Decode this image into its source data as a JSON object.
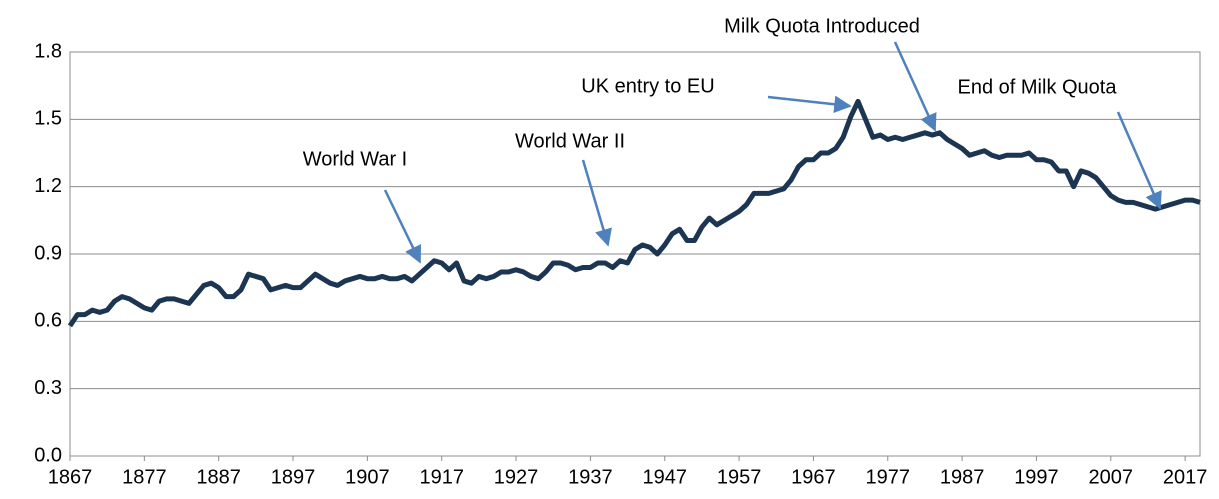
{
  "chart_data": {
    "type": "line",
    "x": [
      1867,
      1868,
      1869,
      1870,
      1871,
      1872,
      1873,
      1874,
      1875,
      1876,
      1877,
      1878,
      1879,
      1880,
      1881,
      1882,
      1883,
      1884,
      1885,
      1886,
      1887,
      1888,
      1889,
      1890,
      1891,
      1892,
      1893,
      1894,
      1895,
      1896,
      1897,
      1898,
      1899,
      1900,
      1901,
      1902,
      1903,
      1904,
      1905,
      1906,
      1907,
      1908,
      1909,
      1910,
      1911,
      1912,
      1913,
      1914,
      1915,
      1916,
      1917,
      1918,
      1919,
      1920,
      1921,
      1922,
      1923,
      1924,
      1925,
      1926,
      1927,
      1928,
      1929,
      1930,
      1931,
      1932,
      1933,
      1934,
      1935,
      1936,
      1937,
      1938,
      1939,
      1940,
      1941,
      1942,
      1943,
      1944,
      1945,
      1946,
      1947,
      1948,
      1949,
      1950,
      1951,
      1952,
      1953,
      1954,
      1955,
      1956,
      1957,
      1958,
      1959,
      1960,
      1961,
      1962,
      1963,
      1964,
      1965,
      1966,
      1967,
      1968,
      1969,
      1970,
      1971,
      1972,
      1973,
      1974,
      1975,
      1976,
      1977,
      1978,
      1979,
      1980,
      1981,
      1982,
      1983,
      1984,
      1985,
      1986,
      1987,
      1988,
      1989,
      1990,
      1991,
      1992,
      1993,
      1994,
      1995,
      1996,
      1997,
      1998,
      1999,
      2000,
      2001,
      2002,
      2003,
      2004,
      2005,
      2006,
      2007,
      2008,
      2009,
      2010,
      2011,
      2012,
      2013,
      2014,
      2015,
      2016,
      2017,
      2018,
      2019
    ],
    "series": [
      {
        "color": "#1c3553",
        "values": [
          0.58,
          0.63,
          0.63,
          0.65,
          0.64,
          0.65,
          0.69,
          0.71,
          0.7,
          0.68,
          0.66,
          0.65,
          0.69,
          0.7,
          0.7,
          0.69,
          0.68,
          0.72,
          0.76,
          0.77,
          0.75,
          0.71,
          0.71,
          0.74,
          0.81,
          0.8,
          0.79,
          0.74,
          0.75,
          0.76,
          0.75,
          0.75,
          0.78,
          0.81,
          0.79,
          0.77,
          0.76,
          0.78,
          0.79,
          0.8,
          0.79,
          0.79,
          0.8,
          0.79,
          0.79,
          0.8,
          0.78,
          0.81,
          0.84,
          0.87,
          0.86,
          0.83,
          0.86,
          0.78,
          0.77,
          0.8,
          0.79,
          0.8,
          0.82,
          0.82,
          0.83,
          0.82,
          0.8,
          0.79,
          0.82,
          0.86,
          0.86,
          0.85,
          0.83,
          0.84,
          0.84,
          0.86,
          0.86,
          0.84,
          0.87,
          0.86,
          0.92,
          0.94,
          0.93,
          0.9,
          0.94,
          0.99,
          1.01,
          0.96,
          0.96,
          1.02,
          1.06,
          1.03,
          1.05,
          1.07,
          1.09,
          1.12,
          1.17,
          1.17,
          1.17,
          1.18,
          1.19,
          1.23,
          1.29,
          1.32,
          1.32,
          1.35,
          1.35,
          1.37,
          1.42,
          1.51,
          1.58,
          1.5,
          1.42,
          1.43,
          1.41,
          1.42,
          1.41,
          1.42,
          1.43,
          1.44,
          1.43,
          1.44,
          1.41,
          1.39,
          1.37,
          1.34,
          1.35,
          1.36,
          1.34,
          1.33,
          1.34,
          1.34,
          1.34,
          1.35,
          1.32,
          1.32,
          1.31,
          1.27,
          1.27,
          1.2,
          1.27,
          1.26,
          1.24,
          1.2,
          1.16,
          1.14,
          1.13,
          1.13,
          1.12,
          1.11,
          1.1,
          1.11,
          1.12,
          1.13,
          1.14,
          1.14,
          1.13
        ]
      }
    ],
    "xlim": [
      1867,
      2019
    ],
    "xticks": [
      1867,
      1877,
      1887,
      1897,
      1907,
      1917,
      1927,
      1937,
      1947,
      1957,
      1967,
      1977,
      1987,
      1997,
      2007,
      2017
    ],
    "ylim": [
      0,
      1.8
    ],
    "yticks": [
      {
        "value": 0,
        "label": "0.0"
      },
      0.3,
      0.6,
      0.9,
      1.2,
      1.5,
      1.8
    ],
    "grid": true,
    "annotations": [
      "World War I",
      "World War II",
      "UK entry to EU",
      "Milk Quota Introduced",
      "End of Milk Quota"
    ]
  }
}
